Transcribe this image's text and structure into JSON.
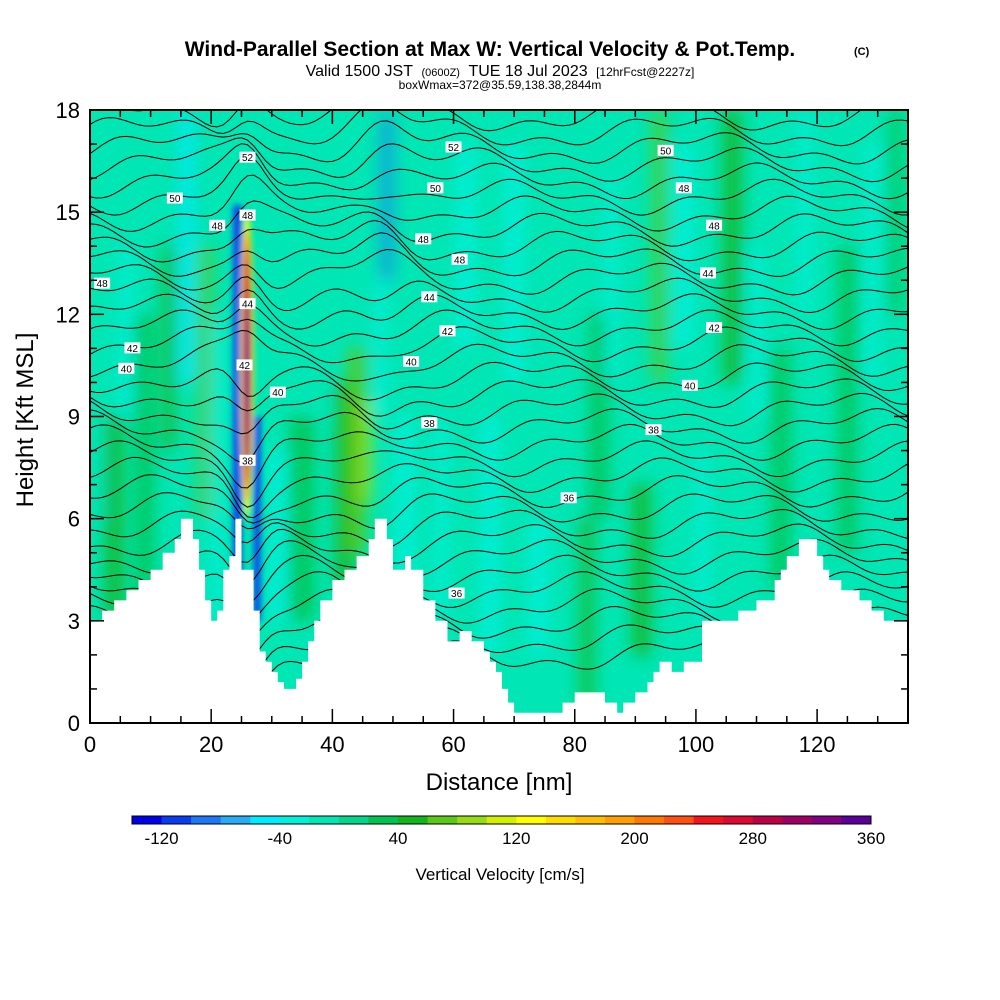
{
  "chart_data": {
    "type": "heatmap",
    "title_main": "Wind-Parallel Section at Max W: Vertical Velocity & Pot.Temp.",
    "title_copyright": "(C)",
    "subtitle_valid": "Valid 1500 JST",
    "subtitle_utc": "(0600Z)",
    "subtitle_date": "TUE 18 Jul 2023",
    "subtitle_fcst": "[12hrFcst@2227z]",
    "subtitle_box": "boxWmax=372@35.59,138.38,2844m",
    "xlabel": "Distance [nm]",
    "ylabel": "Height [Kft MSL]",
    "xlim": [
      0,
      135
    ],
    "ylim": [
      0,
      18
    ],
    "x_ticks": [
      "0",
      "20",
      "40",
      "60",
      "80",
      "100",
      "120"
    ],
    "x_tick_values": [
      0,
      20,
      40,
      60,
      80,
      100,
      120
    ],
    "y_ticks": [
      "0",
      "3",
      "6",
      "9",
      "12",
      "15",
      "18"
    ],
    "y_tick_values": [
      0,
      3,
      6,
      9,
      12,
      15,
      18
    ],
    "colorbar": {
      "title": "Vertical Velocity [cm/s]",
      "min": -140,
      "step": 20,
      "labels": [
        "-120",
        "-40",
        "40",
        "120",
        "200",
        "280",
        "360"
      ],
      "label_values": [
        -120,
        -40,
        40,
        120,
        200,
        280,
        360
      ],
      "colors": [
        "#0000e6",
        "#0a3cf0",
        "#1e78f5",
        "#28aaf5",
        "#00ebff",
        "#00f0dc",
        "#00e6b4",
        "#00d78c",
        "#00c350",
        "#14b41e",
        "#5ac819",
        "#96dc14",
        "#d2f000",
        "#ffff00",
        "#ffdc00",
        "#ffbe00",
        "#ffa000",
        "#ff7800",
        "#ff5014",
        "#f5141e",
        "#dc0a32",
        "#be0046",
        "#a00064",
        "#820082",
        "#5a0096"
      ]
    },
    "terrain_kft": [
      [
        0,
        3.0
      ],
      [
        2,
        3.0
      ],
      [
        2,
        3.3
      ],
      [
        4,
        3.3
      ],
      [
        4,
        3.6
      ],
      [
        6,
        3.6
      ],
      [
        6,
        3.9
      ],
      [
        8,
        3.9
      ],
      [
        8,
        4.2
      ],
      [
        10,
        4.2
      ],
      [
        10,
        4.5
      ],
      [
        12,
        4.5
      ],
      [
        12,
        5.0
      ],
      [
        14,
        5.0
      ],
      [
        14,
        5.4
      ],
      [
        15,
        5.4
      ],
      [
        15,
        6.0
      ],
      [
        17,
        6.0
      ],
      [
        17,
        5.4
      ],
      [
        18,
        5.4
      ],
      [
        18,
        4.5
      ],
      [
        19,
        4.5
      ],
      [
        19,
        3.6
      ],
      [
        20,
        3.6
      ],
      [
        20,
        3.0
      ],
      [
        21,
        3.0
      ],
      [
        21,
        3.3
      ],
      [
        22,
        3.3
      ],
      [
        22,
        4.5
      ],
      [
        23,
        4.5
      ],
      [
        23,
        4.9
      ],
      [
        24,
        4.9
      ],
      [
        24,
        6.0
      ],
      [
        25,
        6.0
      ],
      [
        25,
        4.5
      ],
      [
        27,
        4.5
      ],
      [
        27,
        3.3
      ],
      [
        28,
        3.3
      ],
      [
        28,
        2.1
      ],
      [
        29,
        2.1
      ],
      [
        29,
        1.8
      ],
      [
        30,
        1.8
      ],
      [
        30,
        1.5
      ],
      [
        31,
        1.5
      ],
      [
        31,
        1.2
      ],
      [
        32,
        1.2
      ],
      [
        32,
        1.0
      ],
      [
        34,
        1.0
      ],
      [
        34,
        1.3
      ],
      [
        35,
        1.3
      ],
      [
        35,
        1.8
      ],
      [
        36,
        1.8
      ],
      [
        36,
        2.4
      ],
      [
        37,
        2.4
      ],
      [
        37,
        3.0
      ],
      [
        38,
        3.0
      ],
      [
        38,
        3.6
      ],
      [
        40,
        3.6
      ],
      [
        40,
        4.2
      ],
      [
        42,
        4.2
      ],
      [
        42,
        4.5
      ],
      [
        44,
        4.5
      ],
      [
        44,
        4.9
      ],
      [
        46,
        4.9
      ],
      [
        46,
        5.4
      ],
      [
        47,
        5.4
      ],
      [
        47,
        6.0
      ],
      [
        49,
        6.0
      ],
      [
        49,
        5.4
      ],
      [
        50,
        5.4
      ],
      [
        50,
        4.5
      ],
      [
        52,
        4.5
      ],
      [
        52,
        4.9
      ],
      [
        53,
        4.9
      ],
      [
        53,
        4.5
      ],
      [
        55,
        4.5
      ],
      [
        55,
        3.6
      ],
      [
        57,
        3.6
      ],
      [
        57,
        3.0
      ],
      [
        59,
        3.0
      ],
      [
        59,
        2.4
      ],
      [
        61,
        2.4
      ],
      [
        61,
        2.7
      ],
      [
        63,
        2.7
      ],
      [
        63,
        2.4
      ],
      [
        65,
        2.4
      ],
      [
        65,
        2.1
      ],
      [
        66,
        2.1
      ],
      [
        66,
        1.8
      ],
      [
        67,
        1.8
      ],
      [
        67,
        1.5
      ],
      [
        68,
        1.5
      ],
      [
        68,
        1.0
      ],
      [
        69,
        1.0
      ],
      [
        69,
        0.6
      ],
      [
        70,
        0.6
      ],
      [
        70,
        0.3
      ],
      [
        78,
        0.3
      ],
      [
        78,
        0.6
      ],
      [
        80,
        0.6
      ],
      [
        80,
        0.9
      ],
      [
        85,
        0.9
      ],
      [
        85,
        0.6
      ],
      [
        87,
        0.6
      ],
      [
        87,
        0.3
      ],
      [
        88,
        0.3
      ],
      [
        88,
        0.6
      ],
      [
        90,
        0.6
      ],
      [
        90,
        0.9
      ],
      [
        92,
        0.9
      ],
      [
        92,
        1.2
      ],
      [
        93,
        1.2
      ],
      [
        93,
        1.5
      ],
      [
        94,
        1.5
      ],
      [
        94,
        1.8
      ],
      [
        96,
        1.8
      ],
      [
        96,
        1.5
      ],
      [
        98,
        1.5
      ],
      [
        98,
        1.8
      ],
      [
        101,
        1.8
      ],
      [
        101,
        3.0
      ],
      [
        107,
        3.0
      ],
      [
        107,
        3.3
      ],
      [
        110,
        3.3
      ],
      [
        110,
        3.6
      ],
      [
        113,
        3.6
      ],
      [
        113,
        4.2
      ],
      [
        114,
        4.2
      ],
      [
        114,
        4.5
      ],
      [
        115,
        4.5
      ],
      [
        115,
        4.9
      ],
      [
        117,
        4.9
      ],
      [
        117,
        5.4
      ],
      [
        120,
        5.4
      ],
      [
        120,
        4.9
      ],
      [
        121,
        4.9
      ],
      [
        121,
        4.5
      ],
      [
        122,
        4.5
      ],
      [
        122,
        4.2
      ],
      [
        124,
        4.2
      ],
      [
        124,
        3.9
      ],
      [
        127,
        3.9
      ],
      [
        127,
        3.6
      ],
      [
        129,
        3.6
      ],
      [
        129,
        3.3
      ],
      [
        131,
        3.3
      ],
      [
        131,
        3.0
      ],
      [
        135,
        3.0
      ]
    ],
    "velocity_features": [
      {
        "x": 26,
        "y_range": [
          6.0,
          14.5
        ],
        "w_cm_s": 372,
        "note": "updraft core"
      },
      {
        "x": 24.5,
        "y_range": [
          3.0,
          15.0
        ],
        "w_cm_s": -120
      },
      {
        "x": 49,
        "y_range": [
          13.0,
          17.0
        ],
        "w_cm_s": -100
      },
      {
        "x": 45,
        "y_range": [
          6.5,
          9.5
        ],
        "w_cm_s": 100
      }
    ],
    "contour_labels": [
      {
        "text": "52",
        "x": 26,
        "y": 16.6
      },
      {
        "text": "52",
        "x": 60,
        "y": 16.9
      },
      {
        "text": "50",
        "x": 95,
        "y": 16.8
      },
      {
        "text": "50",
        "x": 14,
        "y": 15.4
      },
      {
        "text": "50",
        "x": 57,
        "y": 15.7
      },
      {
        "text": "48",
        "x": 98,
        "y": 15.7
      },
      {
        "text": "48",
        "x": 26,
        "y": 14.9
      },
      {
        "text": "48",
        "x": 21,
        "y": 14.6
      },
      {
        "text": "48",
        "x": 103,
        "y": 14.6
      },
      {
        "text": "48",
        "x": 55,
        "y": 14.2
      },
      {
        "text": "48",
        "x": 61,
        "y": 13.6
      },
      {
        "text": "48",
        "x": 2,
        "y": 12.9
      },
      {
        "text": "44",
        "x": 102,
        "y": 13.2
      },
      {
        "text": "44",
        "x": 56,
        "y": 12.5
      },
      {
        "text": "44",
        "x": 26,
        "y": 12.3
      },
      {
        "text": "42",
        "x": 59,
        "y": 11.5
      },
      {
        "text": "42",
        "x": 103,
        "y": 11.6
      },
      {
        "text": "42",
        "x": 7,
        "y": 11.0
      },
      {
        "text": "42",
        "x": 25.5,
        "y": 10.5
      },
      {
        "text": "40",
        "x": 6,
        "y": 10.4
      },
      {
        "text": "40",
        "x": 53,
        "y": 10.6
      },
      {
        "text": "40",
        "x": 99,
        "y": 9.9
      },
      {
        "text": "40",
        "x": 31,
        "y": 9.7
      },
      {
        "text": "38",
        "x": 56,
        "y": 8.8
      },
      {
        "text": "38",
        "x": 93,
        "y": 8.6
      },
      {
        "text": "38",
        "x": 26,
        "y": 7.7
      },
      {
        "text": "36",
        "x": 79,
        "y": 6.6
      },
      {
        "text": "36",
        "x": 60.5,
        "y": 3.8
      }
    ]
  }
}
